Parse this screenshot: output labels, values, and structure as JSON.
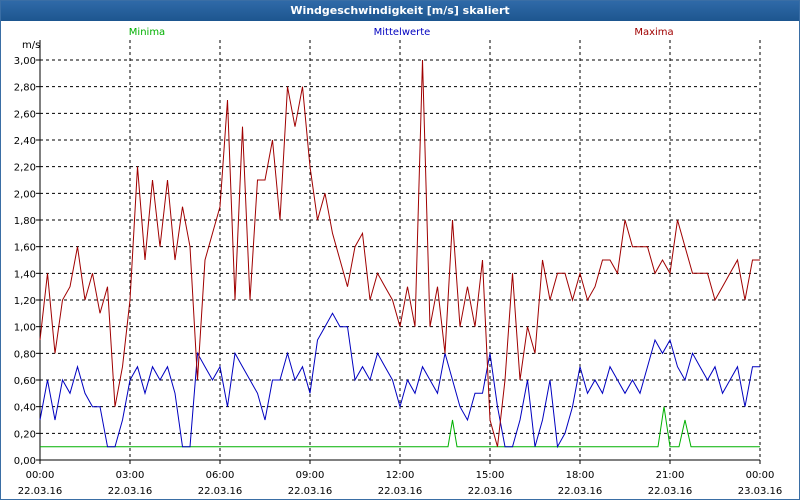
{
  "window": {
    "title": "Windgeschwindigkeit [m/s] skaliert"
  },
  "colors": {
    "minima": "#00b000",
    "mittel": "#0000c0",
    "maxima": "#a00000",
    "grid": "#000000"
  },
  "chart_data": {
    "type": "line",
    "title": "Windgeschwindigkeit [m/s] skaliert",
    "ylabel": "m/s",
    "ylim": [
      0,
      3.0
    ],
    "xlim": [
      0,
      24
    ],
    "x_unit": "hours after 22.03.16 00:00",
    "legend": [
      "Minima",
      "Mittelwerte",
      "Maxima"
    ],
    "yticks": [
      "0,00",
      "0,20",
      "0,40",
      "0,60",
      "0,80",
      "1,00",
      "1,20",
      "1,40",
      "1,60",
      "1,80",
      "2,00",
      "2,20",
      "2,40",
      "2,60",
      "2,80",
      "3,00"
    ],
    "xticks": [
      {
        "time": "00:00",
        "date": "22.03.16"
      },
      {
        "time": "03:00",
        "date": "22.03.16"
      },
      {
        "time": "06:00",
        "date": "22.03.16"
      },
      {
        "time": "09:00",
        "date": "22.03.16"
      },
      {
        "time": "12:00",
        "date": "22.03.16"
      },
      {
        "time": "15:00",
        "date": "22.03.16"
      },
      {
        "time": "18:00",
        "date": "22.03.16"
      },
      {
        "time": "21:00",
        "date": "22.03.16"
      },
      {
        "time": "00:00",
        "date": "23.03.16"
      }
    ],
    "series": [
      {
        "name": "Minima",
        "x": [
          0,
          13.6,
          13.75,
          13.9,
          20.6,
          20.8,
          21.0,
          21.3,
          21.5,
          21.7,
          24
        ],
        "y": [
          0.1,
          0.1,
          0.3,
          0.1,
          0.1,
          0.4,
          0.1,
          0.1,
          0.3,
          0.1,
          0.1
        ]
      },
      {
        "name": "Mittelwerte",
        "x": [
          0,
          0.25,
          0.5,
          0.75,
          1.0,
          1.25,
          1.5,
          1.75,
          2.0,
          2.25,
          2.5,
          2.75,
          3.0,
          3.25,
          3.5,
          3.75,
          4.0,
          4.25,
          4.5,
          4.75,
          5.0,
          5.25,
          5.5,
          5.75,
          6.0,
          6.25,
          6.5,
          6.75,
          7.0,
          7.25,
          7.5,
          7.75,
          8.0,
          8.25,
          8.5,
          8.75,
          9.0,
          9.25,
          9.5,
          9.75,
          10.0,
          10.25,
          10.5,
          10.75,
          11.0,
          11.25,
          11.5,
          11.75,
          12.0,
          12.25,
          12.5,
          12.75,
          13.0,
          13.25,
          13.5,
          13.75,
          14.0,
          14.25,
          14.5,
          14.75,
          15.0,
          15.25,
          15.5,
          15.75,
          16.0,
          16.25,
          16.5,
          16.75,
          17.0,
          17.25,
          17.5,
          17.75,
          18.0,
          18.25,
          18.5,
          18.75,
          19.0,
          19.25,
          19.5,
          19.75,
          20.0,
          20.25,
          20.5,
          20.75,
          21.0,
          21.25,
          21.5,
          21.75,
          22.0,
          22.25,
          22.5,
          22.75,
          23.0,
          23.25,
          23.5,
          23.75,
          24.0
        ],
        "y": [
          0.3,
          0.6,
          0.3,
          0.6,
          0.5,
          0.7,
          0.5,
          0.4,
          0.4,
          0.1,
          0.1,
          0.3,
          0.6,
          0.7,
          0.5,
          0.7,
          0.6,
          0.7,
          0.5,
          0.1,
          0.1,
          0.8,
          0.7,
          0.6,
          0.7,
          0.4,
          0.8,
          0.7,
          0.6,
          0.5,
          0.3,
          0.6,
          0.6,
          0.8,
          0.6,
          0.7,
          0.5,
          0.9,
          1.0,
          1.1,
          1.0,
          1.0,
          0.6,
          0.7,
          0.6,
          0.8,
          0.7,
          0.6,
          0.4,
          0.6,
          0.5,
          0.7,
          0.6,
          0.5,
          0.8,
          0.6,
          0.4,
          0.3,
          0.5,
          0.5,
          0.8,
          0.4,
          0.1,
          0.1,
          0.3,
          0.6,
          0.1,
          0.3,
          0.6,
          0.1,
          0.2,
          0.4,
          0.7,
          0.5,
          0.6,
          0.5,
          0.7,
          0.6,
          0.5,
          0.6,
          0.5,
          0.7,
          0.9,
          0.8,
          0.9,
          0.7,
          0.6,
          0.8,
          0.7,
          0.6,
          0.7,
          0.5,
          0.6,
          0.7,
          0.4,
          0.7,
          0.7
        ]
      },
      {
        "name": "Maxima",
        "x": [
          0,
          0.25,
          0.5,
          0.75,
          1.0,
          1.25,
          1.5,
          1.75,
          2.0,
          2.25,
          2.5,
          2.75,
          3.0,
          3.25,
          3.5,
          3.75,
          4.0,
          4.25,
          4.5,
          4.75,
          5.0,
          5.25,
          5.5,
          5.75,
          6.0,
          6.25,
          6.5,
          6.75,
          7.0,
          7.25,
          7.5,
          7.75,
          8.0,
          8.25,
          8.5,
          8.75,
          9.0,
          9.25,
          9.5,
          9.75,
          10.0,
          10.25,
          10.5,
          10.75,
          11.0,
          11.25,
          11.5,
          11.75,
          12.0,
          12.25,
          12.5,
          12.75,
          13.0,
          13.25,
          13.5,
          13.75,
          14.0,
          14.25,
          14.5,
          14.75,
          15.0,
          15.25,
          15.5,
          15.75,
          16.0,
          16.25,
          16.5,
          16.75,
          17.0,
          17.25,
          17.5,
          17.75,
          18.0,
          18.25,
          18.5,
          18.75,
          19.0,
          19.25,
          19.5,
          19.75,
          20.0,
          20.25,
          20.5,
          20.75,
          21.0,
          21.25,
          21.5,
          21.75,
          22.0,
          22.25,
          22.5,
          22.75,
          23.0,
          23.25,
          23.5,
          23.75,
          24.0
        ],
        "y": [
          0.9,
          1.4,
          0.8,
          1.2,
          1.3,
          1.6,
          1.2,
          1.4,
          1.1,
          1.3,
          0.4,
          0.7,
          1.2,
          2.2,
          1.5,
          2.1,
          1.6,
          2.1,
          1.5,
          1.9,
          1.6,
          0.6,
          1.5,
          1.7,
          1.9,
          2.7,
          1.2,
          2.5,
          1.2,
          2.1,
          2.1,
          2.4,
          1.8,
          2.8,
          2.5,
          2.8,
          2.2,
          1.8,
          2.0,
          1.7,
          1.5,
          1.3,
          1.6,
          1.7,
          1.2,
          1.4,
          1.3,
          1.2,
          1.0,
          1.3,
          1.0,
          3.0,
          1.0,
          1.3,
          0.8,
          1.8,
          1.0,
          1.3,
          1.0,
          1.5,
          0.3,
          0.1,
          0.6,
          1.4,
          0.6,
          1.0,
          0.8,
          1.5,
          1.2,
          1.4,
          1.4,
          1.2,
          1.4,
          1.2,
          1.3,
          1.5,
          1.5,
          1.4,
          1.8,
          1.6,
          1.6,
          1.6,
          1.4,
          1.5,
          1.4,
          1.8,
          1.6,
          1.4,
          1.4,
          1.4,
          1.2,
          1.3,
          1.4,
          1.5,
          1.2,
          1.5,
          1.5
        ]
      }
    ]
  }
}
